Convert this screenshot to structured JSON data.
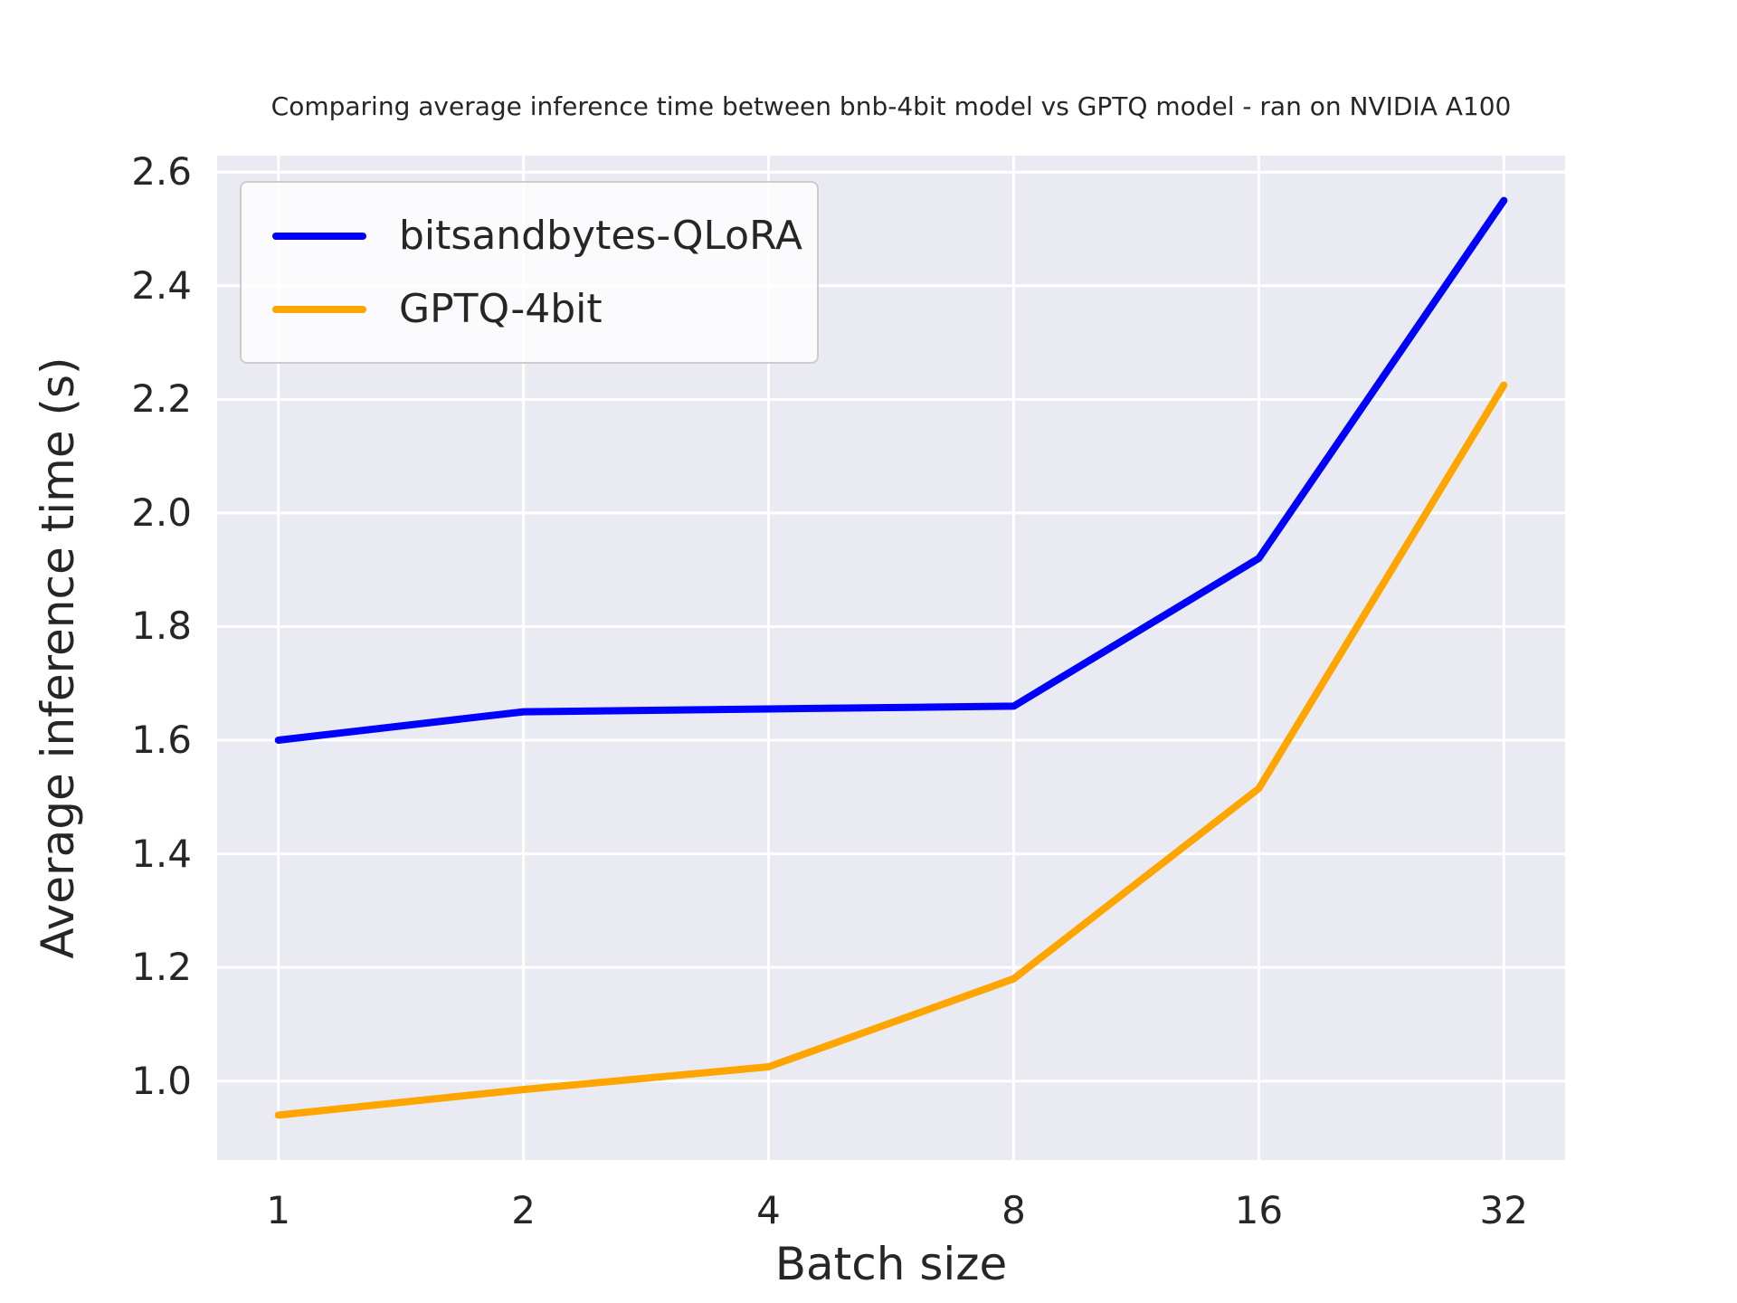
{
  "chart_data": {
    "type": "line",
    "title": "Comparing average inference time between bnb-4bit model vs GPTQ model - ran on NVIDIA A100",
    "xlabel": "Batch size",
    "ylabel": "Average inference time (s)",
    "x": [
      1,
      2,
      4,
      8,
      16,
      32
    ],
    "x_scale": "log2",
    "xticklabels": [
      "1",
      "2",
      "4",
      "8",
      "16",
      "32"
    ],
    "yticks": [
      1.0,
      1.2,
      1.4,
      1.6,
      1.8,
      2.0,
      2.2,
      2.4,
      2.6
    ],
    "ylim": [
      0.861,
      2.629
    ],
    "grid": true,
    "legend_position": "upper left",
    "colors": {
      "plot_background": "#eaeaf2",
      "grid": "#ffffff",
      "text": "#262626",
      "legend_face": "rgba(255,255,255,0.8)",
      "legend_edge": "#cccccc"
    },
    "series": [
      {
        "name": "bitsandbytes-QLoRA",
        "color": "#0000ff",
        "values": [
          1.6,
          1.65,
          1.655,
          1.66,
          1.92,
          2.55
        ]
      },
      {
        "name": "GPTQ-4bit",
        "color": "#ffa500",
        "values": [
          0.94,
          0.985,
          1.025,
          1.18,
          1.515,
          2.225
        ]
      }
    ]
  }
}
